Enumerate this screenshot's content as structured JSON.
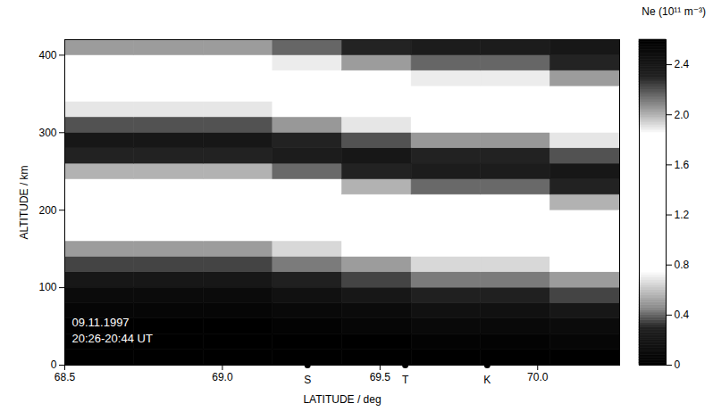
{
  "chart_data": {
    "type": "heatmap",
    "xlabel": "LATITUDE / deg",
    "ylabel": "ALTITUDE / km",
    "xlim": [
      68.5,
      70.26
    ],
    "ylim": [
      0,
      420
    ],
    "xticks": [
      {
        "value": 68.5,
        "label": "68.5"
      },
      {
        "value": 69,
        "label": "69.0"
      },
      {
        "value": 69.5,
        "label": "69.5"
      },
      {
        "value": 70,
        "label": "70.0"
      }
    ],
    "yticks": [
      0,
      100,
      200,
      300,
      400
    ],
    "x_edges": [
      68.5,
      68.72,
      68.94,
      69.16,
      69.38,
      69.6,
      69.82,
      70.04,
      70.26
    ],
    "y_edges": [
      0,
      20,
      40,
      60,
      80,
      100,
      120,
      140,
      160,
      180,
      200,
      220,
      240,
      260,
      280,
      300,
      320,
      340,
      360,
      380,
      400,
      420
    ],
    "values": [
      [
        0,
        0,
        0,
        0,
        0,
        0,
        0,
        0
      ],
      [
        0,
        0,
        0,
        0,
        0,
        0.03,
        0.03,
        0.05
      ],
      [
        0,
        0,
        0,
        0.03,
        0.05,
        0.08,
        0.08,
        0.1
      ],
      [
        0.05,
        0.05,
        0.05,
        0.08,
        0.1,
        0.15,
        0.15,
        0.2
      ],
      [
        0.1,
        0.1,
        0.1,
        0.15,
        0.2,
        0.28,
        0.28,
        0.35
      ],
      [
        0.2,
        0.2,
        0.2,
        0.28,
        0.35,
        0.43,
        0.43,
        0.5
      ],
      [
        0.35,
        0.35,
        0.35,
        0.43,
        0.5,
        0.65,
        0.65,
        0.8
      ],
      [
        0.5,
        0.5,
        0.5,
        0.65,
        0.8,
        0.95,
        0.95,
        1.1
      ],
      [
        0.8,
        0.8,
        0.8,
        0.95,
        1.1,
        1.25,
        1.25,
        1.4
      ],
      [
        1.1,
        1.1,
        1.1,
        1.25,
        1.4,
        1.55,
        1.55,
        1.7
      ],
      [
        1.4,
        1.4,
        1.4,
        1.55,
        1.7,
        1.85,
        1.85,
        2.0
      ],
      [
        1.7,
        1.7,
        1.7,
        1.85,
        2.0,
        2.15,
        2.15,
        2.3
      ],
      [
        2.0,
        2.0,
        2.0,
        2.15,
        2.3,
        2.35,
        2.35,
        2.4
      ],
      [
        2.3,
        2.3,
        2.3,
        2.35,
        2.4,
        2.3,
        2.3,
        2.2
      ],
      [
        2.4,
        2.4,
        2.4,
        2.3,
        2.2,
        2.05,
        2.05,
        1.9
      ],
      [
        2.2,
        2.2,
        2.2,
        2.05,
        1.9,
        1.7,
        1.7,
        1.5
      ],
      [
        1.9,
        1.9,
        1.9,
        1.7,
        1.5,
        1.35,
        1.35,
        1.2
      ],
      [
        1.5,
        1.5,
        1.5,
        1.35,
        1.2,
        1.05,
        1.05,
        0.9
      ],
      [
        1.2,
        1.2,
        1.2,
        1.05,
        0.9,
        0.7,
        0.7,
        0.5
      ],
      [
        0.9,
        0.9,
        0.9,
        0.7,
        0.5,
        0.4,
        0.4,
        0.3
      ],
      [
        0.5,
        0.5,
        0.5,
        0.4,
        0.3,
        0.25,
        0.25,
        0.2
      ]
    ],
    "colorbar": {
      "label": "Ne (10¹¹ m⁻³)",
      "range": [
        0,
        2.6
      ],
      "ticks": [
        0,
        0.4,
        0.8,
        1.2,
        1.6,
        {
          "value": 2,
          "label": "2.0"
        },
        2.4
      ]
    },
    "annotations": [
      "09.11.1997",
      "20:26-20:44 UT"
    ],
    "stations": [
      {
        "label": "S",
        "lat": 69.27
      },
      {
        "label": "T",
        "lat": 69.58
      },
      {
        "label": "K",
        "lat": 69.84
      }
    ]
  }
}
